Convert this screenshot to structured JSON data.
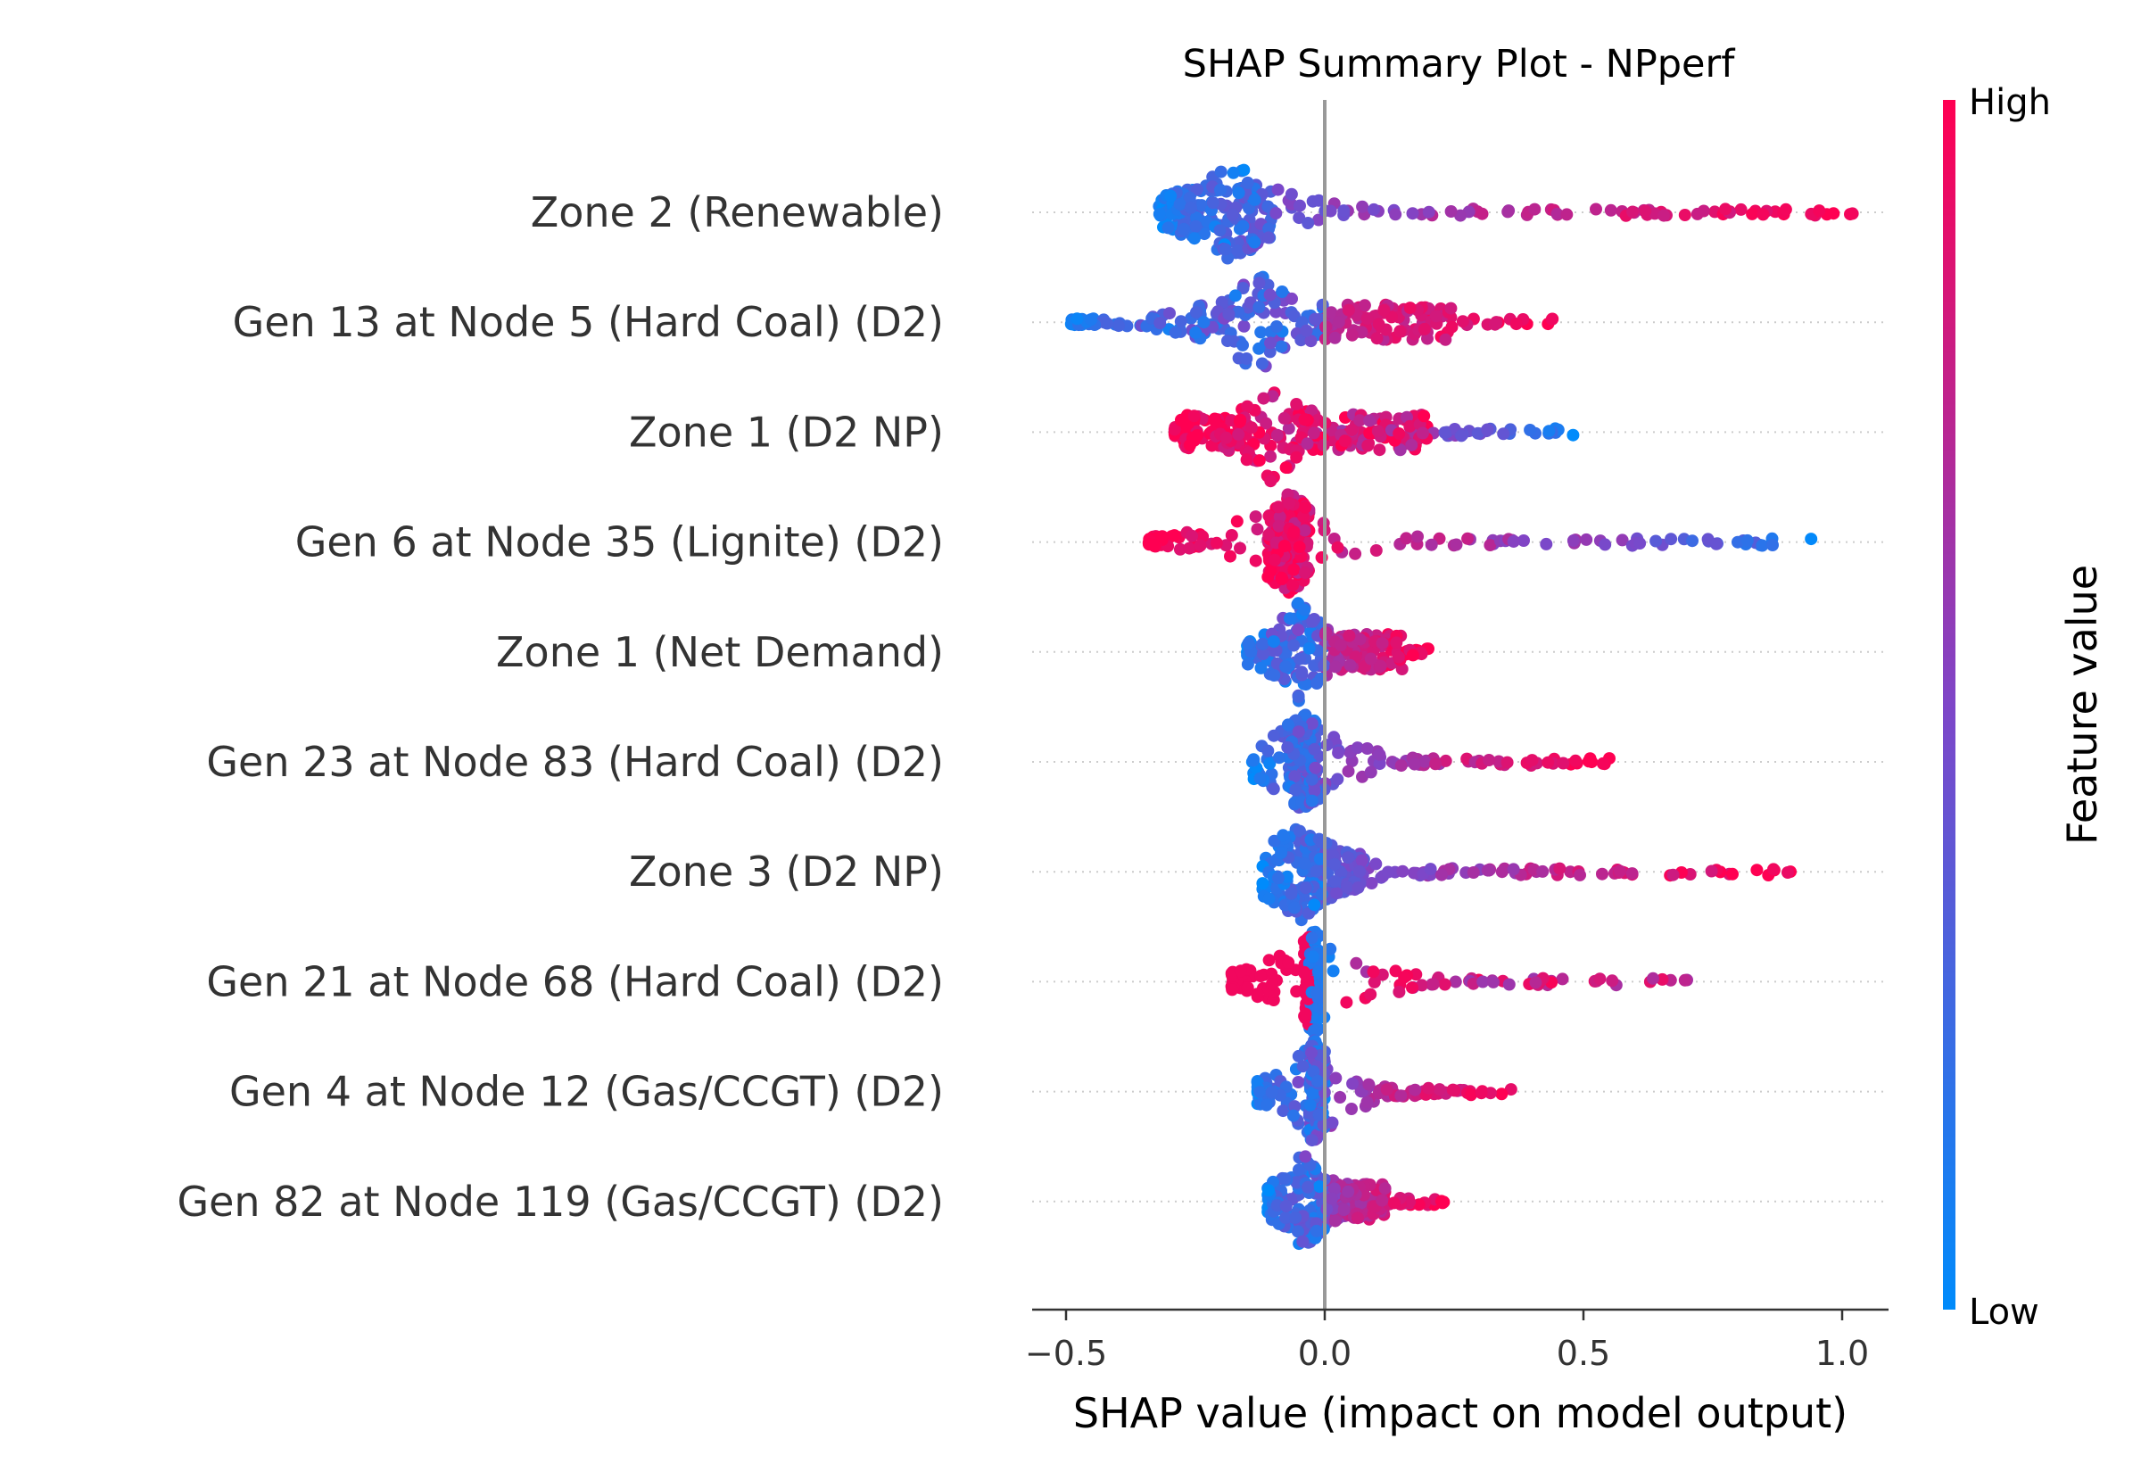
{
  "chart_data": {
    "type": "scatter",
    "subtype": "shap-beeswarm",
    "title": "SHAP Summary Plot - NPperf",
    "xlabel": "SHAP value (impact on model output)",
    "xlim": [
      -0.57,
      1.09
    ],
    "xticks": [
      {
        "value": -0.5,
        "label": "−0.5"
      },
      {
        "value": 0.0,
        "label": "0.0"
      },
      {
        "value": 0.5,
        "label": "0.5"
      },
      {
        "value": 1.0,
        "label": "1.0"
      }
    ],
    "reference_line_x": 0,
    "colorbar": {
      "title": "Feature value",
      "high_label": "High",
      "low_label": "Low",
      "low_color": "#008bfb",
      "high_color": "#ff0052"
    },
    "features": [
      {
        "name": "Zone 2 (Renewable)",
        "min": -0.32,
        "max": 1.02,
        "core_lo": -0.31,
        "core_hi": -0.1,
        "peak": -0.18,
        "spread": 0.45,
        "pattern": "low_left_high_right"
      },
      {
        "name": "Gen 13 at Node 5 (Hard Coal) (D2)",
        "min": -0.49,
        "max": 0.44,
        "core_lo": -0.25,
        "core_hi": 0.25,
        "peak": -0.13,
        "spread": 0.35,
        "pattern": "low_left_high_right"
      },
      {
        "name": "Zone 1 (D2 NP)",
        "min": -0.29,
        "max": 0.48,
        "core_lo": -0.28,
        "core_hi": 0.2,
        "peak": -0.1,
        "spread": 0.25,
        "pattern": "high_left_low_right"
      },
      {
        "name": "Gen 6 at Node 35 (Lignite) (D2)",
        "min": -0.34,
        "max": 0.94,
        "core_lo": -0.11,
        "core_hi": -0.03,
        "peak": -0.07,
        "spread": 0.45,
        "pattern": "high_left_low_right"
      },
      {
        "name": "Zone 1 (Net Demand)",
        "min": -0.15,
        "max": 0.2,
        "core_lo": -0.1,
        "core_hi": 0.15,
        "peak": -0.05,
        "spread": 0.15,
        "pattern": "low_left_high_right"
      },
      {
        "name": "Gen 23 at Node 83 (Hard Coal) (D2)",
        "min": -0.14,
        "max": 0.55,
        "core_lo": -0.07,
        "core_hi": -0.01,
        "peak": -0.04,
        "spread": 0.3,
        "pattern": "low_left_high_right"
      },
      {
        "name": "Zone 3 (D2 NP)",
        "min": -0.12,
        "max": 0.9,
        "core_lo": -0.1,
        "core_hi": 0.07,
        "peak": -0.05,
        "spread": 0.3,
        "pattern": "low_left_high_right"
      },
      {
        "name": "Gen 21 at Node 68 (Hard Coal) (D2)",
        "min": -0.18,
        "max": 0.7,
        "core_lo": -0.04,
        "core_hi": -0.01,
        "peak": -0.02,
        "spread": 0.35,
        "pattern": "high_left_mixed_right"
      },
      {
        "name": "Gen 4 at Node 12 (Gas/CCGT) (D2)",
        "min": -0.13,
        "max": 0.36,
        "core_lo": -0.03,
        "core_hi": 0.0,
        "peak": -0.02,
        "spread": 0.2,
        "pattern": "low_left_high_right"
      },
      {
        "name": "Gen 82 at Node 119 (Gas/CCGT) (D2)",
        "min": -0.11,
        "max": 0.23,
        "core_lo": -0.08,
        "core_hi": 0.12,
        "peak": -0.04,
        "spread": 0.1,
        "pattern": "low_left_high_right"
      }
    ]
  }
}
